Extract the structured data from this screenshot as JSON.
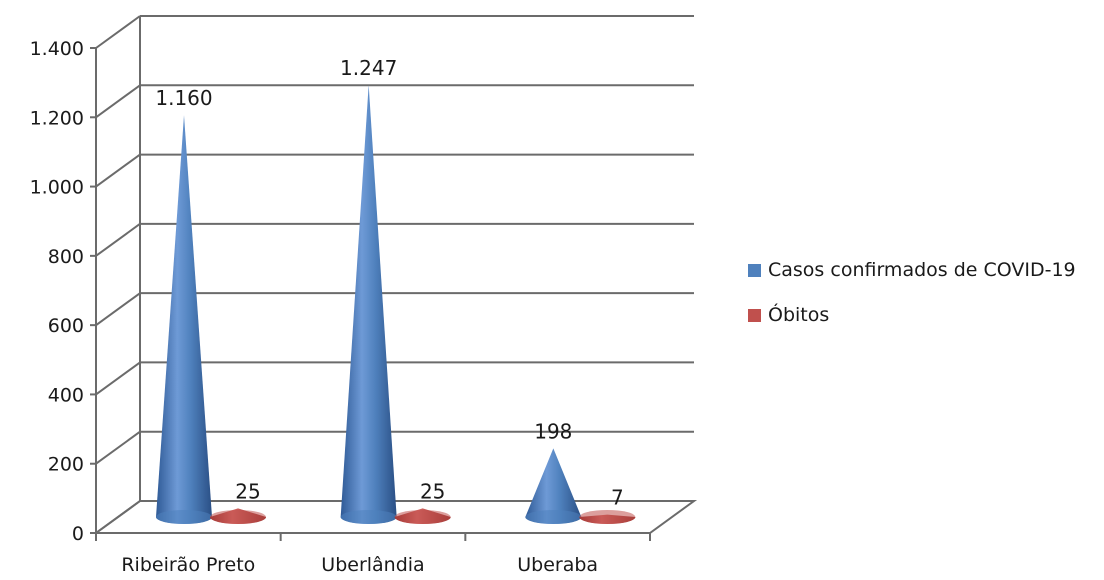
{
  "chart_data": {
    "type": "bar",
    "categories": [
      "Ribeirão Preto",
      "Uberlândia",
      "Uberaba"
    ],
    "series": [
      {
        "name": "Casos confirmados de COVID-19",
        "values": [
          1160,
          1247,
          198
        ],
        "labels": [
          "1.160",
          "1.247",
          "198"
        ],
        "color": "#4f81bd"
      },
      {
        "name": "Óbitos",
        "values": [
          25,
          25,
          7
        ],
        "labels": [
          "25",
          "25",
          "7"
        ],
        "color": "#c0504d"
      }
    ],
    "ylim": [
      0,
      1400
    ],
    "yticks": [
      0,
      200,
      400,
      600,
      800,
      1000,
      1200,
      1400
    ],
    "ytick_labels": [
      "0",
      "200",
      "400",
      "600",
      "800",
      "1.000",
      "1.200",
      "1.400"
    ],
    "grid": true,
    "legend_position": "right",
    "shape": "cone-3d"
  }
}
